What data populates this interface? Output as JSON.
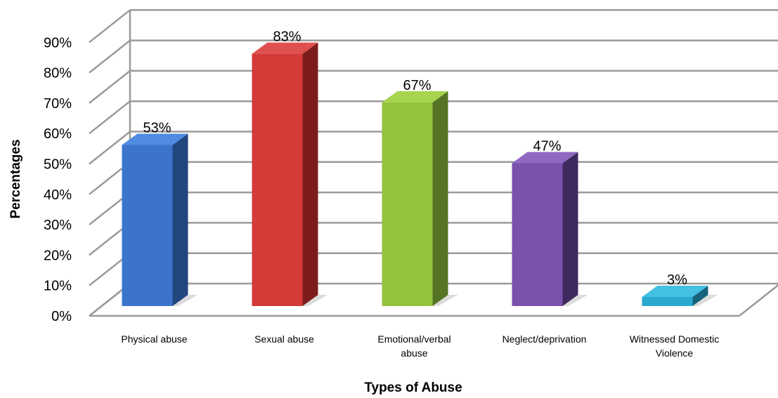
{
  "chart_data": {
    "type": "bar",
    "title": "",
    "xlabel": "Types of Abuse",
    "ylabel": "Percentages",
    "ylim": [
      0,
      90
    ],
    "yticks": [
      "0%",
      "10%",
      "20%",
      "30%",
      "40%",
      "50%",
      "60%",
      "70%",
      "80%",
      "90%"
    ],
    "grid": true,
    "legend": "none",
    "categories": [
      [
        "Physical abuse"
      ],
      [
        "Sexual abuse"
      ],
      [
        "Emotional/verbal",
        "abuse"
      ],
      [
        "Neglect/deprivation"
      ],
      [
        "Witnessed Domestic",
        "Violence"
      ]
    ],
    "values": [
      53,
      83,
      67,
      47,
      3
    ],
    "data_labels": [
      "53%",
      "83%",
      "67%",
      "47%",
      "3%"
    ],
    "colors": [
      {
        "front": "#3c74cc",
        "side": "#22467f",
        "top": "#4f8be0"
      },
      {
        "front": "#d43a38",
        "side": "#7c1d1c",
        "top": "#e0504e"
      },
      {
        "front": "#94c23c",
        "side": "#557424",
        "top": "#a6d44e"
      },
      {
        "front": "#7a52ac",
        "side": "#3f2a5f",
        "top": "#9068c2"
      },
      {
        "front": "#2aa9cf",
        "side": "#17627a",
        "top": "#44c0e4"
      }
    ]
  }
}
